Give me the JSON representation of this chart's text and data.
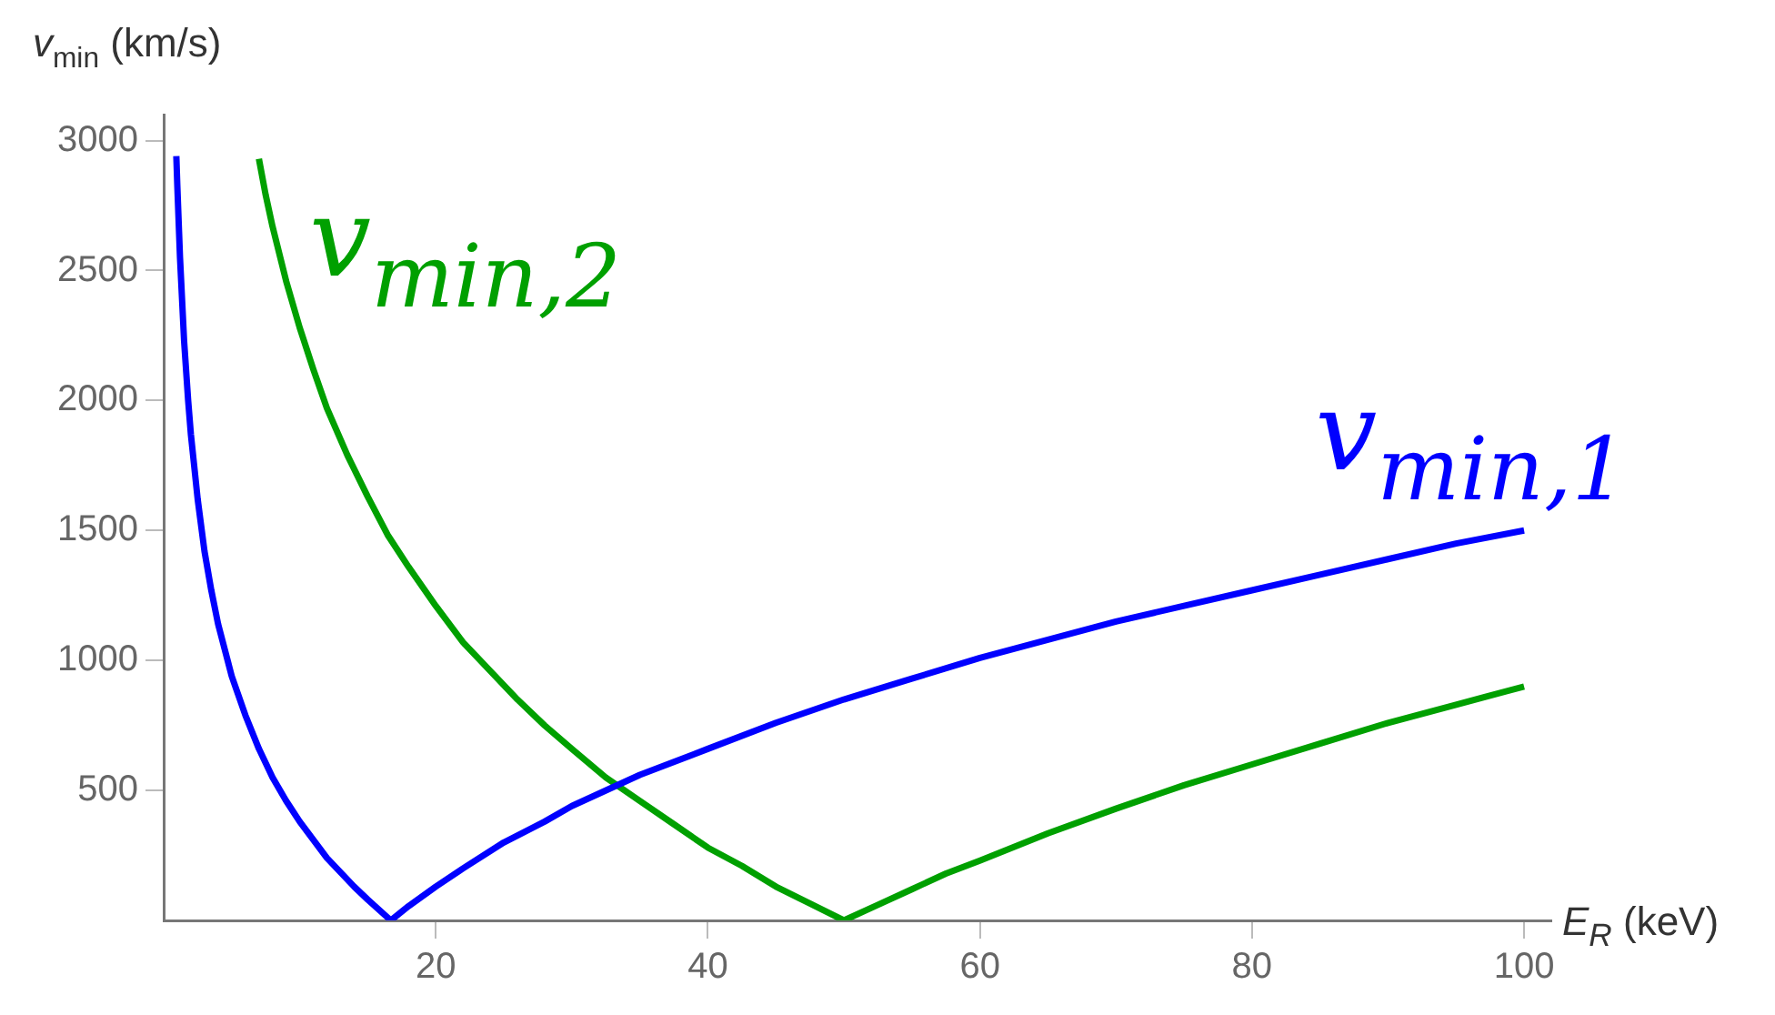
{
  "chart_data": {
    "type": "line",
    "xlabel": "E$_{R}$ (keV)",
    "ylabel": "v$_{min}$ (km/s)",
    "xlim": [
      0,
      102
    ],
    "xticks": [
      20,
      40,
      60,
      80,
      100
    ],
    "ylim": [
      0,
      3100
    ],
    "yticks": [
      500,
      1000,
      1500,
      2000,
      2500,
      3000
    ],
    "grid": false,
    "legend": false,
    "marker": "none",
    "line_style": "solid",
    "series": [
      {
        "name": "v$_{min,1}$",
        "color": "#0000ff",
        "x": [
          0.93,
          1,
          1.2,
          1.5,
          1.8,
          2,
          2.5,
          3,
          3.5,
          4,
          5,
          6,
          7,
          8,
          9,
          10,
          11,
          12,
          13,
          14,
          15,
          16.7,
          18,
          20,
          22,
          25,
          28,
          30,
          35,
          40,
          45,
          50,
          55,
          60,
          65,
          70,
          75,
          80,
          85,
          90,
          95,
          100
        ],
        "values": [
          2940,
          2830,
          2550,
          2230,
          2000,
          1870,
          1620,
          1420,
          1270,
          1140,
          940,
          790,
          660,
          550,
          460,
          380,
          310,
          240,
          185,
          130,
          80,
          0,
          55,
          130,
          200,
          300,
          380,
          440,
          560,
          660,
          760,
          850,
          930,
          1010,
          1080,
          1150,
          1210,
          1270,
          1330,
          1390,
          1450,
          1500
        ]
      },
      {
        "name": "v$_{min,2}$",
        "color": "#00a000",
        "x": [
          7,
          7.5,
          8,
          9,
          10,
          11,
          12,
          13.5,
          15,
          16.5,
          18,
          20,
          22,
          24,
          26,
          28,
          30,
          32.5,
          35,
          37.5,
          40,
          42.5,
          45,
          47.5,
          50,
          52.5,
          55,
          57.5,
          60,
          65,
          70,
          75,
          80,
          85,
          90,
          95,
          100
        ],
        "values": [
          2930,
          2790,
          2670,
          2460,
          2280,
          2120,
          1970,
          1790,
          1630,
          1480,
          1360,
          1210,
          1070,
          960,
          850,
          750,
          660,
          550,
          460,
          370,
          280,
          210,
          130,
          65,
          0,
          60,
          120,
          180,
          230,
          335,
          430,
          520,
          600,
          680,
          760,
          830,
          900
        ]
      }
    ]
  }
}
